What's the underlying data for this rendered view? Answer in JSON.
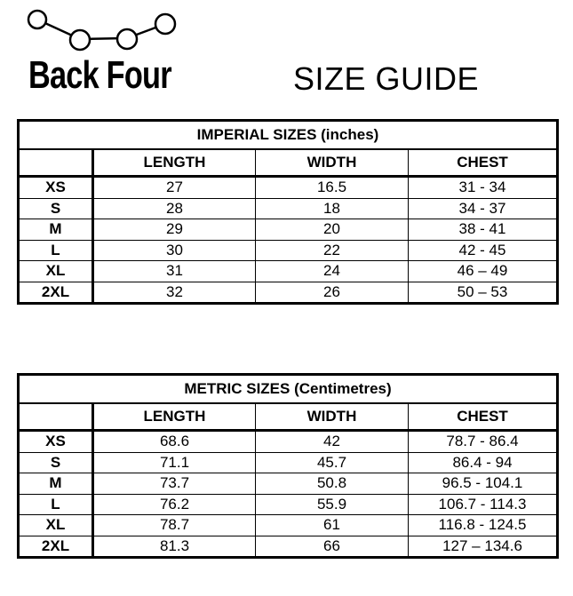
{
  "brand": {
    "name": "Back Four"
  },
  "title": "SIZE GUIDE",
  "tables": [
    {
      "title": "IMPERIAL SIZES (inches)",
      "headers": [
        "",
        "LENGTH",
        "WIDTH",
        "CHEST"
      ],
      "rows": [
        [
          "XS",
          "27",
          "16.5",
          "31 - 34"
        ],
        [
          "S",
          "28",
          "18",
          "34 - 37"
        ],
        [
          "M",
          "29",
          "20",
          "38 - 41"
        ],
        [
          "L",
          "30",
          "22",
          "42 - 45"
        ],
        [
          "XL",
          "31",
          "24",
          "46 – 49"
        ],
        [
          "2XL",
          "32",
          "26",
          "50 – 53"
        ]
      ]
    },
    {
      "title": "METRIC SIZES (Centimetres)",
      "headers": [
        "",
        "LENGTH",
        "WIDTH",
        "CHEST"
      ],
      "rows": [
        [
          "XS",
          "68.6",
          "42",
          "78.7 - 86.4"
        ],
        [
          "S",
          "71.1",
          "45.7",
          "86.4 - 94"
        ],
        [
          "M",
          "73.7",
          "50.8",
          "96.5 - 104.1"
        ],
        [
          "L",
          "76.2",
          "55.9",
          "106.7 - 114.3"
        ],
        [
          "XL",
          "78.7",
          "61",
          "116.8 - 124.5"
        ],
        [
          "2XL",
          "81.3",
          "66",
          "127 – 134.6"
        ]
      ]
    }
  ]
}
